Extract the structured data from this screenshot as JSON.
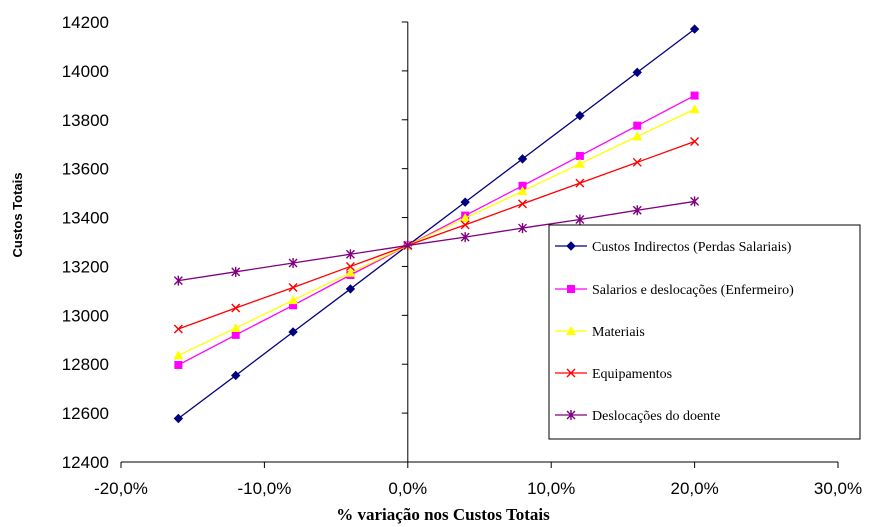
{
  "chart_data": {
    "type": "line",
    "title": "",
    "xlabel": "% variação nos Custos Totais",
    "ylabel": "Custos Totais",
    "xlim": [
      -0.2,
      0.3
    ],
    "ylim": [
      12400,
      14200
    ],
    "x_ticks": [
      -0.2,
      -0.1,
      0.0,
      0.1,
      0.2,
      0.3
    ],
    "x_tick_labels": [
      "-20,0%",
      "-10,0%",
      "0,0%",
      "10,0%",
      "20,0%",
      "30,0%"
    ],
    "y_ticks": [
      12400,
      12600,
      12800,
      13000,
      13200,
      13400,
      13600,
      13800,
      14000,
      14200
    ],
    "y_tick_labels": [
      "12400",
      "12600",
      "12800",
      "13000",
      "13200",
      "13400",
      "13600",
      "13800",
      "14000",
      "14200"
    ],
    "grid": false,
    "legend_position": "right",
    "x": [
      -0.16,
      -0.12,
      -0.08,
      -0.04,
      0.0,
      0.04,
      0.08,
      0.12,
      0.16,
      0.2
    ],
    "series": [
      {
        "name": "Custos Indirectos (Perdas Salariais)",
        "color": "#000080",
        "marker": "diamond",
        "values": [
          12578,
          12754,
          12932,
          13108,
          13286,
          13463,
          13640,
          13817,
          13994,
          14171
        ]
      },
      {
        "name": "Salarios e deslocações (Enfermeiro)",
        "color": "#ff00ff",
        "marker": "square",
        "values": [
          12797,
          12920,
          13041,
          13165,
          13286,
          13408,
          13530,
          13652,
          13776,
          13899
        ]
      },
      {
        "name": "Materiais",
        "color": "#ffff00",
        "marker": "triangle",
        "values": [
          12836,
          12948,
          13062,
          13174,
          13286,
          13398,
          13508,
          13620,
          13732,
          13843
        ]
      },
      {
        "name": "Equipamentos",
        "color": "#ff0000",
        "marker": "x",
        "values": [
          12944,
          13030,
          13114,
          13200,
          13286,
          13370,
          13456,
          13541,
          13626,
          13711
        ]
      },
      {
        "name": "Deslocações do doente",
        "color": "#800080",
        "marker": "star",
        "values": [
          13142,
          13178,
          13214,
          13250,
          13286,
          13320,
          13357,
          13392,
          13430,
          13466
        ]
      }
    ]
  }
}
